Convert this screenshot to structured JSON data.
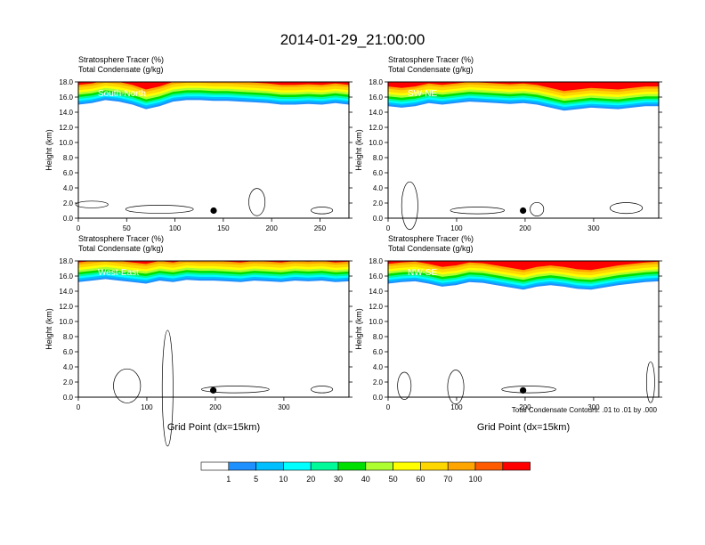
{
  "title": "2014-01-29_21:00:00",
  "colorbar": {
    "labels": [
      "1",
      "5",
      "10",
      "20",
      "30",
      "40",
      "50",
      "60",
      "70",
      "100"
    ],
    "colors": [
      "#ffffff",
      "#1e90ff",
      "#00bfff",
      "#00ffff",
      "#00fa9a",
      "#00e000",
      "#adff2f",
      "#ffff00",
      "#ffd700",
      "#ffa500",
      "#ff5a00",
      "#ff0000"
    ]
  },
  "footnote": "Total Condensate Contours: .01 to .01 by .000",
  "chart_data": [
    {
      "type": "heatmap",
      "subtitle_1": "Stratosphere Tracer   (%)",
      "subtitle_2": "Total Condensate   (g/kg)",
      "label": "South-North",
      "ylabel": "Height (km)",
      "xlabel": "",
      "ylim": [
        0,
        18
      ],
      "xlim": [
        0,
        280
      ],
      "yticks": [
        "0.0",
        "2.0",
        "4.0",
        "6.0",
        "8.0",
        "10.0",
        "12.0",
        "14.0",
        "16.0",
        "18.0"
      ],
      "xticks": [
        0,
        50,
        100,
        150,
        200,
        250
      ],
      "tracer_base_km": [
        15.0,
        15.2,
        15.6,
        15.4,
        15.0,
        14.4,
        14.8,
        15.4,
        15.6,
        15.6,
        15.5,
        15.5,
        15.4,
        15.3,
        15.2,
        15.0,
        15.0,
        15.1,
        15.0,
        15.2,
        15.0
      ],
      "marker": {
        "x": 140,
        "y": 1.0
      }
    },
    {
      "type": "heatmap",
      "subtitle_1": "Stratosphere Tracer   (%)",
      "subtitle_2": "Total Condensate   (g/kg)",
      "label": "SW-NE",
      "ylabel": "Height (km)",
      "xlabel": "",
      "ylim": [
        0,
        18
      ],
      "xlim": [
        0,
        395
      ],
      "yticks": [
        "0.0",
        "2.0",
        "4.0",
        "6.0",
        "8.0",
        "10.0",
        "12.0",
        "14.0",
        "16.0",
        "18.0"
      ],
      "xticks": [
        0,
        100,
        200,
        300
      ],
      "tracer_base_km": [
        14.8,
        14.6,
        14.8,
        15.2,
        15.0,
        15.2,
        15.4,
        15.3,
        15.2,
        15.1,
        15.2,
        15.0,
        14.6,
        14.2,
        14.4,
        14.6,
        14.5,
        14.4,
        14.6,
        14.8,
        14.8
      ],
      "marker": {
        "x": 197,
        "y": 1.0
      }
    },
    {
      "type": "heatmap",
      "subtitle_1": "Stratosphere Tracer   (%)",
      "subtitle_2": "Total Condensate   (g/kg)",
      "label": "West-East",
      "ylabel": "Height (km)",
      "xlabel": "Grid Point (dx=15km)",
      "ylim": [
        0,
        18
      ],
      "xlim": [
        0,
        395
      ],
      "yticks": [
        "0.0",
        "2.0",
        "4.0",
        "6.0",
        "8.0",
        "10.0",
        "12.0",
        "14.0",
        "16.0",
        "18.0"
      ],
      "xticks": [
        0,
        100,
        200,
        300
      ],
      "tracer_base_km": [
        15.2,
        15.4,
        15.6,
        15.4,
        15.2,
        15.0,
        15.4,
        15.2,
        15.5,
        15.4,
        15.4,
        15.3,
        15.2,
        15.4,
        15.3,
        15.2,
        15.4,
        15.3,
        15.4,
        15.2,
        15.3
      ],
      "marker": {
        "x": 197,
        "y": 0.9
      }
    },
    {
      "type": "heatmap",
      "subtitle_1": "Stratosphere Tracer   (%)",
      "subtitle_2": "Total Condensate   (g/kg)",
      "label": "NW-SE",
      "ylabel": "Height (km)",
      "xlabel": "Grid Point (dx=15km)",
      "ylim": [
        0,
        18
      ],
      "xlim": [
        0,
        395
      ],
      "yticks": [
        "0.0",
        "2.0",
        "4.0",
        "6.0",
        "8.0",
        "10.0",
        "12.0",
        "14.0",
        "16.0",
        "18.0"
      ],
      "xticks": [
        0,
        100,
        200,
        300
      ],
      "tracer_base_km": [
        15.0,
        15.2,
        15.3,
        15.0,
        14.6,
        14.8,
        15.2,
        15.1,
        14.8,
        14.5,
        14.2,
        14.6,
        14.8,
        14.6,
        14.3,
        14.2,
        14.5,
        14.8,
        15.0,
        15.2,
        15.3
      ],
      "marker": {
        "x": 197,
        "y": 0.9
      }
    }
  ]
}
